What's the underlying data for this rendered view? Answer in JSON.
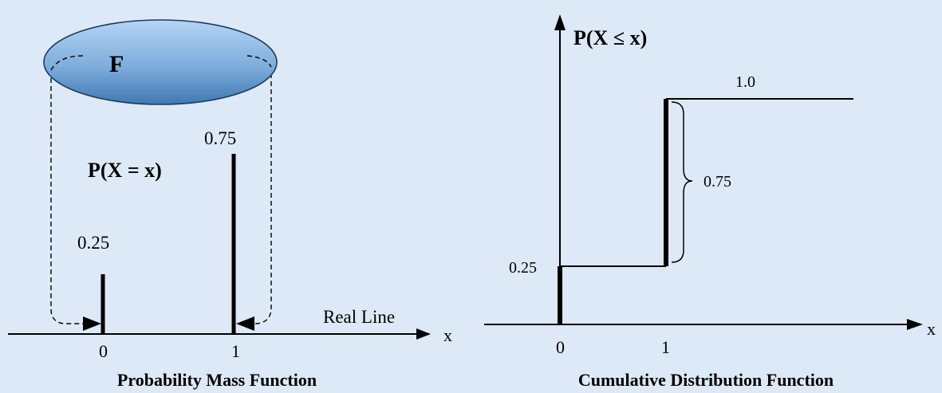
{
  "colors": {
    "background": "#dde9f6",
    "ellipse_top": "#a9cdf0",
    "ellipse_bottom": "#3f79b3",
    "ink": "#000000"
  },
  "pmf": {
    "ellipse_label": "F",
    "function_label": "P(X = x)",
    "axis_var": "x",
    "real_line_label": "Real Line",
    "caption": "Probability Mass Function",
    "points": [
      {
        "x_label": "0",
        "value_label": "0.25",
        "value": 0.25
      },
      {
        "x_label": "1",
        "value_label": "0.75",
        "value": 0.75
      }
    ]
  },
  "cdf": {
    "function_label": "P(X ≤ x)",
    "axis_var": "x",
    "caption": "Cumulative Distribution Function",
    "x_ticks": [
      "0",
      "1"
    ],
    "level_low_label": "0.25",
    "level_high_label": "1.0",
    "jump_label": "0.75",
    "steps": [
      {
        "x": 0,
        "p": 0.25
      },
      {
        "x": 1,
        "p": 1.0
      }
    ]
  }
}
